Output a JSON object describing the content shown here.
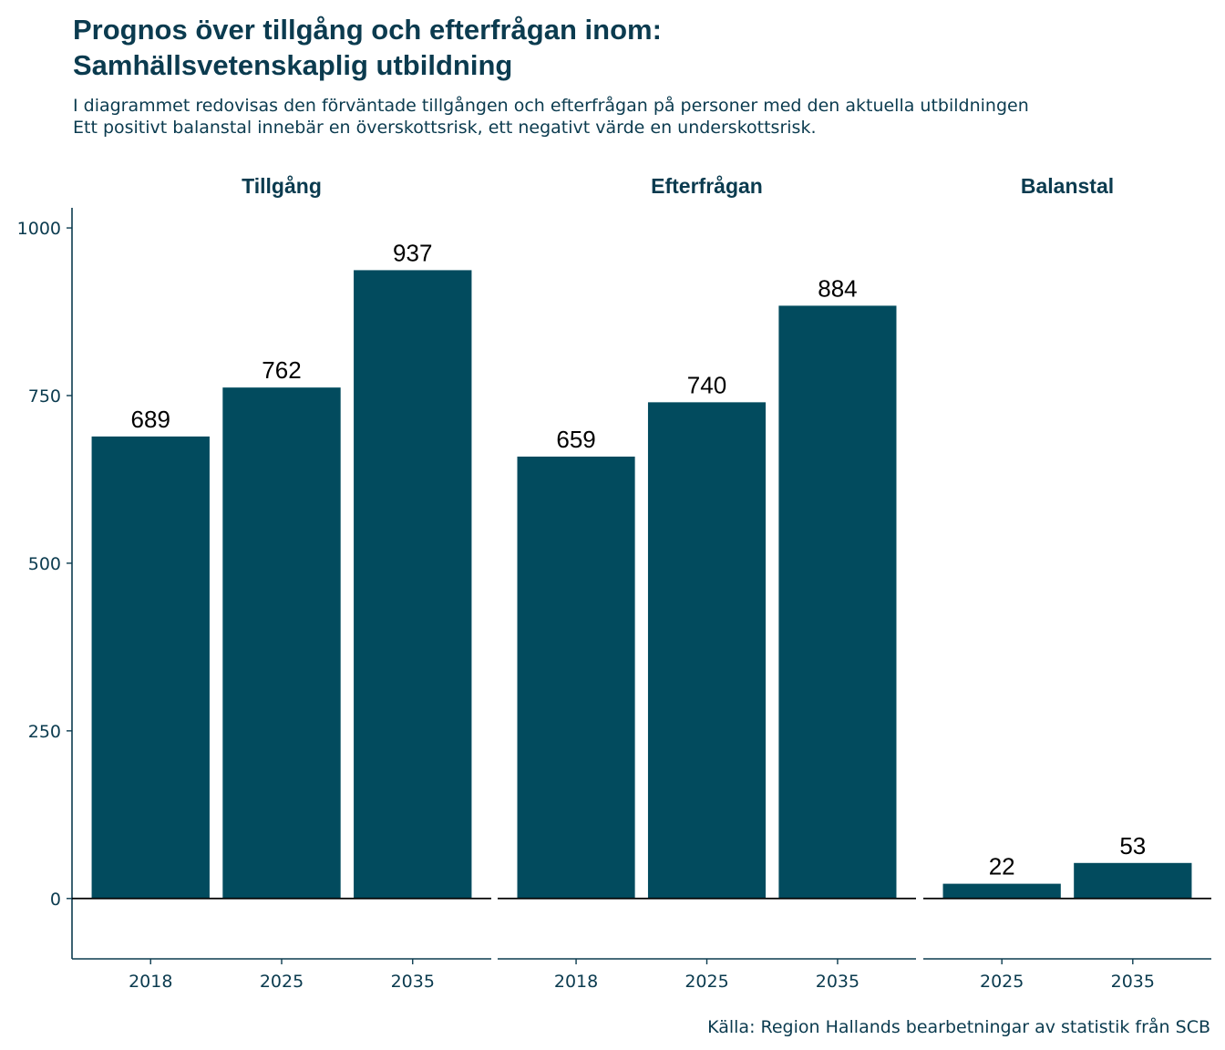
{
  "chart_data": {
    "type": "bar",
    "title_lines": [
      "Prognos över tillgång och efterfrågan inom:",
      "Samhällsvetenskaplig utbildning"
    ],
    "subtitle_lines": [
      "I diagrammet redovisas den förväntade tillgången och efterfrågan på personer med den aktuella utbildningen",
      "Ett positivt balanstal innebär en överskottsrisk, ett negativt värde en underskottsrisk."
    ],
    "caption": "Källa: Region Hallands bearbetningar av statistik från SCB",
    "ylim": [
      -90,
      1030
    ],
    "yticks": [
      0,
      250,
      500,
      750,
      1000
    ],
    "bar_color": "#024b5e",
    "text_color": "#0b3b4f",
    "panels": [
      {
        "name": "Tillgång",
        "categories": [
          "2018",
          "2025",
          "2035"
        ],
        "values": [
          689,
          762,
          937
        ]
      },
      {
        "name": "Efterfrågan",
        "categories": [
          "2018",
          "2025",
          "2035"
        ],
        "values": [
          659,
          740,
          884
        ]
      },
      {
        "name": "Balanstal",
        "categories": [
          "2025",
          "2035"
        ],
        "values": [
          22,
          53
        ]
      }
    ]
  }
}
